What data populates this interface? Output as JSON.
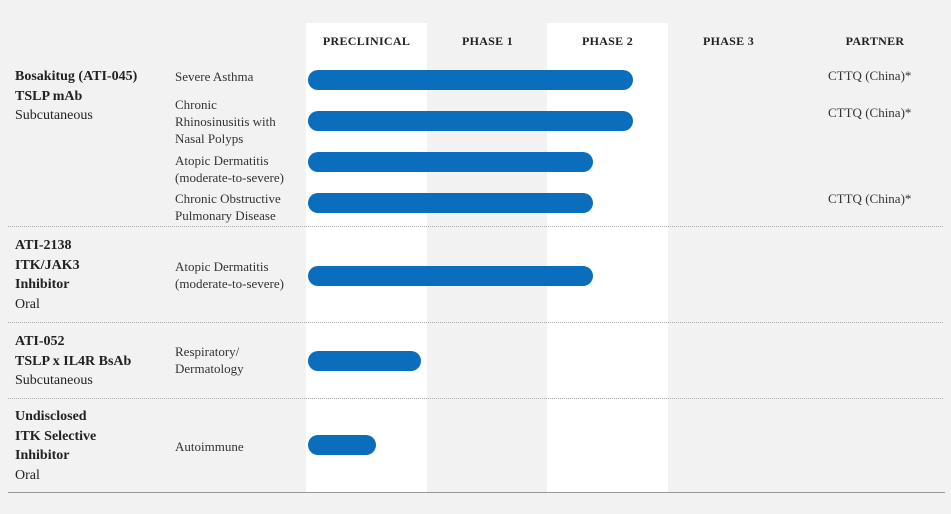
{
  "colors": {
    "bar": "#0a6ebd",
    "phase_column_bg": "#ffffff",
    "page_bg": "#f2f2f2"
  },
  "headers": [
    "PRECLINICAL",
    "PHASE 1",
    "PHASE 2",
    "PHASE 3",
    "PARTNER"
  ],
  "programs": [
    {
      "name_lines": [
        "Bosakitug (ATI-045)",
        "TSLP mAb"
      ],
      "route": "Subcutaneous",
      "indications": [
        {
          "label": "Severe Asthma",
          "progress": 2.7,
          "partner": "CTTQ (China)*"
        },
        {
          "label": "Chronic Rhinosinusitis with Nasal Polyps",
          "progress": 2.7,
          "partner": "CTTQ (China)*"
        },
        {
          "label": "Atopic Dermatitis (moderate-to-severe)",
          "progress": 2.37,
          "partner": ""
        },
        {
          "label": "Chronic Obstructive Pulmonary Disease",
          "progress": 2.37,
          "partner": "CTTQ (China)*"
        }
      ]
    },
    {
      "name_lines": [
        "ATI-2138",
        "ITK/JAK3",
        "Inhibitor"
      ],
      "route": "Oral",
      "indications": [
        {
          "label": "Atopic Dermatitis (moderate-to-severe)",
          "progress": 2.37,
          "partner": ""
        }
      ]
    },
    {
      "name_lines": [
        "ATI-052",
        "TSLP x IL4R BsAb"
      ],
      "route": "Subcutaneous",
      "indications": [
        {
          "label": "Respiratory/ Dermatology",
          "progress": 0.95,
          "partner": ""
        }
      ]
    },
    {
      "name_lines": [
        "Undisclosed",
        "ITK Selective",
        "Inhibitor"
      ],
      "route": "Oral",
      "indications": [
        {
          "label": "Autoimmune",
          "progress": 0.58,
          "partner": ""
        }
      ]
    }
  ],
  "chart_data": {
    "type": "bar",
    "orientation": "horizontal",
    "x_categories": [
      "PRECLINICAL",
      "PHASE 1",
      "PHASE 2",
      "PHASE 3"
    ],
    "xlim": [
      0,
      4
    ],
    "grid": false,
    "legend": "none",
    "categories": [
      "Severe Asthma",
      "Chronic Rhinosinusitis with Nasal Polyps",
      "Atopic Dermatitis (moderate-to-severe)",
      "Chronic Obstructive Pulmonary Disease",
      "Atopic Dermatitis (moderate-to-severe)",
      "Respiratory/ Dermatology",
      "Autoimmune"
    ],
    "values": [
      2.7,
      2.7,
      2.37,
      2.37,
      2.37,
      0.95,
      0.58
    ]
  }
}
